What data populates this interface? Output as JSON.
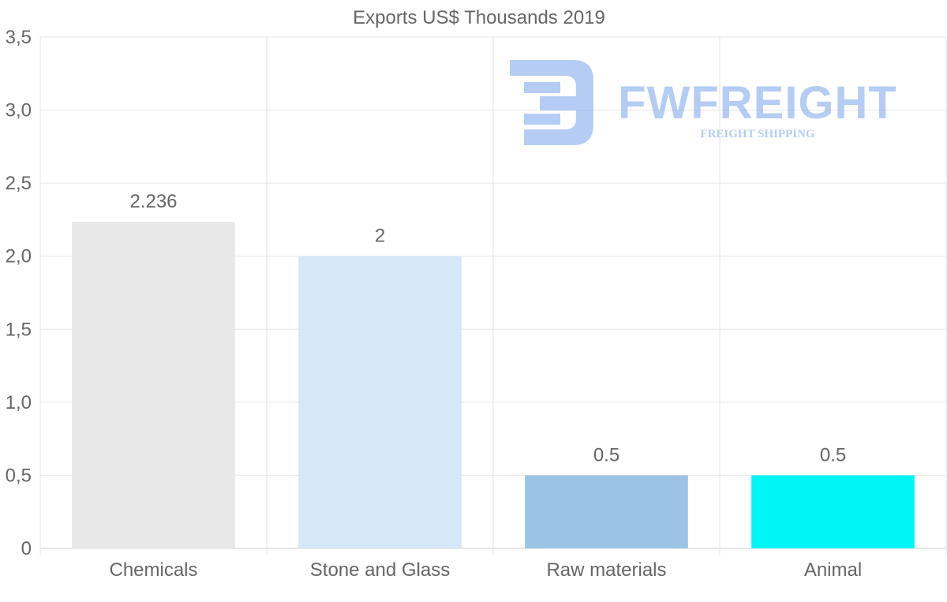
{
  "chart_data": {
    "type": "bar",
    "title": "Exports US$ Thousands 2019",
    "categories": [
      "Chemicals",
      "Stone and Glass",
      "Raw materials",
      "Animal"
    ],
    "values": [
      2.236,
      2,
      0.5,
      0.5
    ],
    "value_labels": [
      "2.236",
      "2",
      "0.5",
      "0.5"
    ],
    "bar_colors": [
      "#e8e8e8",
      "#d6e7f9",
      "#9cc3e6",
      "#00f6f6"
    ],
    "ylim": [
      0,
      3.5
    ],
    "yticks": [
      0,
      0.5,
      1.0,
      1.5,
      2.0,
      2.5,
      3.0,
      3.5
    ],
    "ytick_labels": [
      "0",
      "0,5",
      "1,0",
      "1,5",
      "2,0",
      "2,5",
      "3,0",
      "3,5"
    ],
    "xlabel": "",
    "ylabel": "",
    "grid": true,
    "legend": "none"
  },
  "watermark": {
    "brand": "FWFREIGHT",
    "tagline": "FREIGHT SHIPPING",
    "color": "#7aa6ec"
  }
}
